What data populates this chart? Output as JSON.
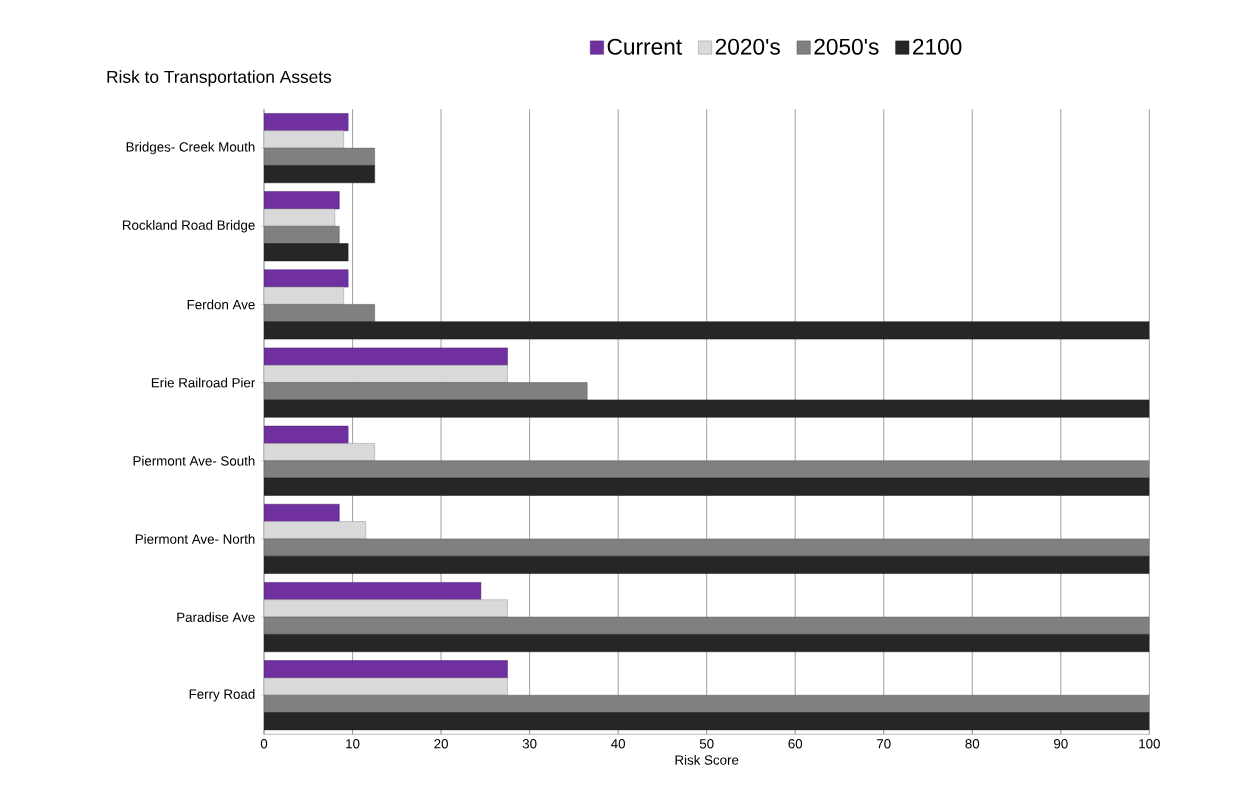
{
  "chart_data": {
    "type": "bar",
    "orientation": "horizontal",
    "title": "Risk to Transportation Assets",
    "xlabel": "Risk Score",
    "categories": [
      "Bridges- Creek Mouth",
      "Rockland Road Bridge",
      "Ferdon Ave",
      "Erie Railroad Pier",
      "Piermont Ave- South",
      "Piermont Ave- North",
      "Paradise Ave",
      "Ferry Road"
    ],
    "series": [
      {
        "name": "Current",
        "color": "#7030a0",
        "values": [
          9.5,
          8.5,
          9.5,
          27.5,
          9.5,
          8.5,
          24.5,
          27.5
        ]
      },
      {
        "name": "2020's",
        "color": "#d9d9d9",
        "values": [
          9,
          8,
          9,
          27.5,
          12.5,
          11.5,
          27.5,
          27.5
        ]
      },
      {
        "name": "2050's",
        "color": "#808080",
        "values": [
          12.5,
          8.5,
          12.5,
          36.5,
          100,
          100,
          100,
          100
        ]
      },
      {
        "name": "2100",
        "color": "#262626",
        "values": [
          12.5,
          9.5,
          100,
          100,
          100,
          100,
          100,
          100
        ]
      }
    ],
    "xlim": [
      0,
      100
    ],
    "xticks": [
      0,
      10,
      20,
      30,
      40,
      50,
      60,
      70,
      80,
      90,
      100
    ],
    "grid": "x",
    "legend": "top"
  }
}
